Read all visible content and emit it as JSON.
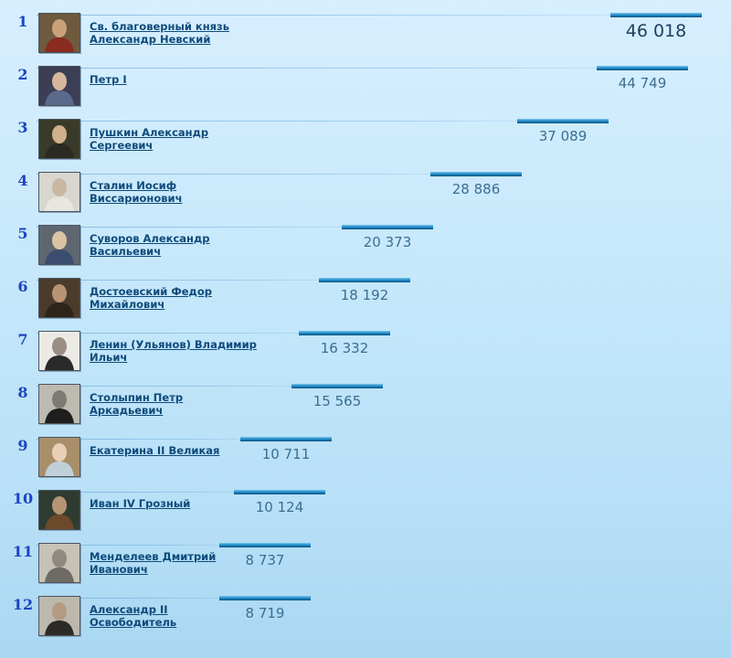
{
  "rating": {
    "items": [
      {
        "rank": "1",
        "name_line1": "Св. благоверный князь",
        "name_line2": "Александр Невский",
        "count": "46 018",
        "value": 46018,
        "portrait": "portrait-alexander-nevsky"
      },
      {
        "rank": "2",
        "name_line1": "Петр I",
        "name_line2": "",
        "count": "44 749",
        "value": 44749,
        "portrait": "portrait-peter-i"
      },
      {
        "rank": "3",
        "name_line1": "Пушкин Александр",
        "name_line2": "Сергеевич",
        "count": "37 089",
        "value": 37089,
        "portrait": "portrait-pushkin"
      },
      {
        "rank": "4",
        "name_line1": "Сталин Иосиф",
        "name_line2": "Виссарионович",
        "count": "28 886",
        "value": 28886,
        "portrait": "portrait-stalin"
      },
      {
        "rank": "5",
        "name_line1": "Суворов Александр",
        "name_line2": "Васильевич",
        "count": "20 373",
        "value": 20373,
        "portrait": "portrait-suvorov"
      },
      {
        "rank": "6",
        "name_line1": "Достоевский Федор",
        "name_line2": "Михайлович",
        "count": "18 192",
        "value": 18192,
        "portrait": "portrait-dostoevsky"
      },
      {
        "rank": "7",
        "name_line1": "Ленин (Ульянов) Владимир",
        "name_line2": "Ильич",
        "count": "16 332",
        "value": 16332,
        "portrait": "portrait-lenin"
      },
      {
        "rank": "8",
        "name_line1": "Столыпин Петр",
        "name_line2": "Аркадьевич",
        "count": "15 565",
        "value": 15565,
        "portrait": "portrait-stolypin"
      },
      {
        "rank": "9",
        "name_line1": "Екатерина II Великая",
        "name_line2": "",
        "count": "10 711",
        "value": 10711,
        "portrait": "portrait-catherine-ii"
      },
      {
        "rank": "10",
        "name_line1": "Иван IV Грозный",
        "name_line2": "",
        "count": "10 124",
        "value": 10124,
        "portrait": "portrait-ivan-iv"
      },
      {
        "rank": "11",
        "name_line1": "Менделеев Дмитрий",
        "name_line2": "Иванович",
        "count": "8 737",
        "value": 8737,
        "portrait": "portrait-mendeleev"
      },
      {
        "rank": "12",
        "name_line1": "Александр II",
        "name_line2": "Освободитель",
        "count": "8 719",
        "value": 8719,
        "portrait": "portrait-alexander-ii"
      }
    ]
  },
  "colors": {
    "rank_text": "#1d45c4",
    "name_link": "#0e4a7a",
    "bar": "#1f89c4",
    "count_text": "#3a6e92",
    "top_count_text": "#1e3f5c"
  }
}
